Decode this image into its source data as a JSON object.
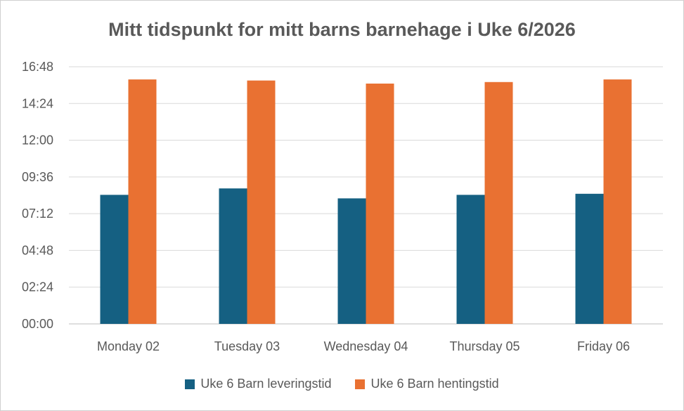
{
  "chart_data": {
    "type": "bar",
    "title": "Mitt tidspunkt for mitt barns barnehage i Uke 6/2026",
    "categories": [
      "Monday 02",
      "Tuesday 03",
      "Wednesday 04",
      "Thursday 05",
      "Friday 06"
    ],
    "y_ticks": [
      "00:00",
      "02:24",
      "04:48",
      "07:12",
      "09:36",
      "12:00",
      "14:24",
      "16:48"
    ],
    "ylim_hours": [
      0,
      16.8
    ],
    "grid": true,
    "legend_position": "bottom",
    "series": [
      {
        "name": "Uke 6 Barn leveringstid",
        "color": "#156082",
        "values_hours": [
          8.43,
          8.85,
          8.2,
          8.43,
          8.5
        ],
        "values": [
          "08:26",
          "08:51",
          "08:12",
          "08:26",
          "08:30"
        ]
      },
      {
        "name": "Uke 6 Barn hentingstid",
        "color": "#E97132",
        "values_hours": [
          15.97,
          15.9,
          15.7,
          15.8,
          15.97
        ],
        "values": [
          "15:58",
          "15:54",
          "15:42",
          "15:48",
          "15:58"
        ]
      }
    ]
  }
}
